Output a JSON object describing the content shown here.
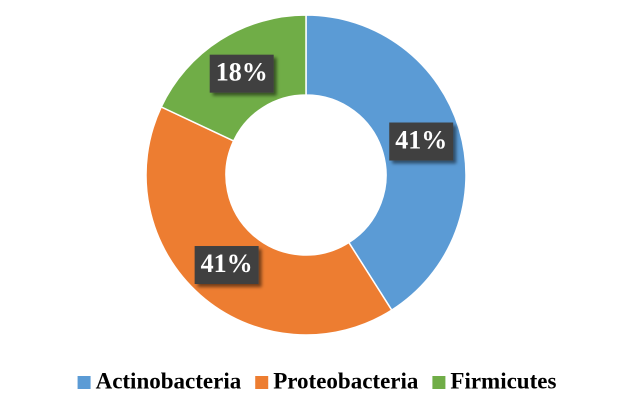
{
  "chart_data": {
    "type": "donut",
    "categories": [
      "Actinobacteria",
      "Proteobacteria",
      "Firmicutes"
    ],
    "values": [
      41,
      41,
      18
    ],
    "value_labels": [
      "41%",
      "41%",
      "18%"
    ],
    "colors": [
      "#5b9bd5",
      "#ed7d31",
      "#70ad47"
    ],
    "legend": "bottom"
  }
}
